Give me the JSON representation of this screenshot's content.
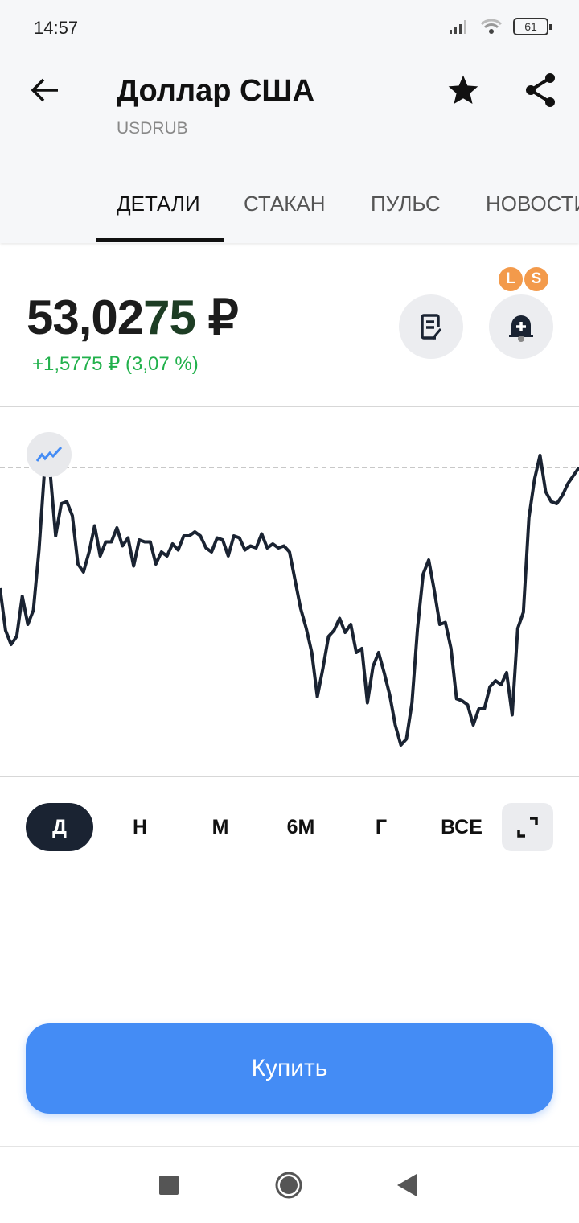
{
  "status_bar": {
    "time": "14:57",
    "battery": "61"
  },
  "header": {
    "title": "Доллар США",
    "ticker": "USDRUB"
  },
  "tabs": [
    {
      "label": "ДЕТАЛИ",
      "active": true
    },
    {
      "label": "СТАКАН"
    },
    {
      "label": "ПУЛЬС"
    },
    {
      "label": "НОВОСТИ"
    }
  ],
  "quote": {
    "price_main": "53,02",
    "price_tail": "75",
    "currency": "₽",
    "change": "+1,5775 ₽ (3,07 %)",
    "change_color": "#22b14c"
  },
  "badges": [
    "L",
    "S"
  ],
  "periods": [
    {
      "label": "Д",
      "active": true
    },
    {
      "label": "Н"
    },
    {
      "label": "М"
    },
    {
      "label": "6М"
    },
    {
      "label": "Г"
    },
    {
      "label": "ВСЕ"
    }
  ],
  "buy_label": "Купить",
  "colors": {
    "accent": "#448cf5",
    "line": "#1a2332"
  },
  "chart_data": {
    "type": "line",
    "title": "",
    "xlabel": "",
    "ylabel": "",
    "grid": false,
    "reference_line": 53.03,
    "ylim": [
      51.49,
      53.33
    ],
    "values": [
      52.43,
      52.22,
      52.15,
      52.19,
      52.39,
      52.25,
      52.32,
      52.62,
      53.02,
      53.01,
      52.69,
      52.85,
      52.86,
      52.79,
      52.55,
      52.51,
      52.61,
      52.74,
      52.59,
      52.66,
      52.66,
      52.73,
      52.64,
      52.68,
      52.54,
      52.67,
      52.66,
      52.66,
      52.55,
      52.61,
      52.59,
      52.65,
      52.62,
      52.69,
      52.69,
      52.71,
      52.69,
      52.63,
      52.61,
      52.68,
      52.67,
      52.59,
      52.69,
      52.68,
      52.62,
      52.64,
      52.63,
      52.7,
      52.63,
      52.65,
      52.63,
      52.64,
      52.61,
      52.47,
      52.33,
      52.23,
      52.11,
      51.89,
      52.03,
      52.19,
      52.22,
      52.28,
      52.21,
      52.25,
      52.11,
      52.13,
      51.86,
      52.04,
      52.11,
      52.01,
      51.9,
      51.75,
      51.65,
      51.68,
      51.86,
      52.23,
      52.5,
      52.57,
      52.42,
      52.25,
      52.26,
      52.13,
      51.88,
      51.87,
      51.85,
      51.75,
      51.83,
      51.83,
      51.94,
      51.97,
      51.95,
      52.01,
      51.8,
      52.23,
      52.31,
      52.78,
      52.97,
      53.09,
      52.91,
      52.86,
      52.85,
      52.89,
      52.95,
      52.99,
      53.03
    ]
  }
}
